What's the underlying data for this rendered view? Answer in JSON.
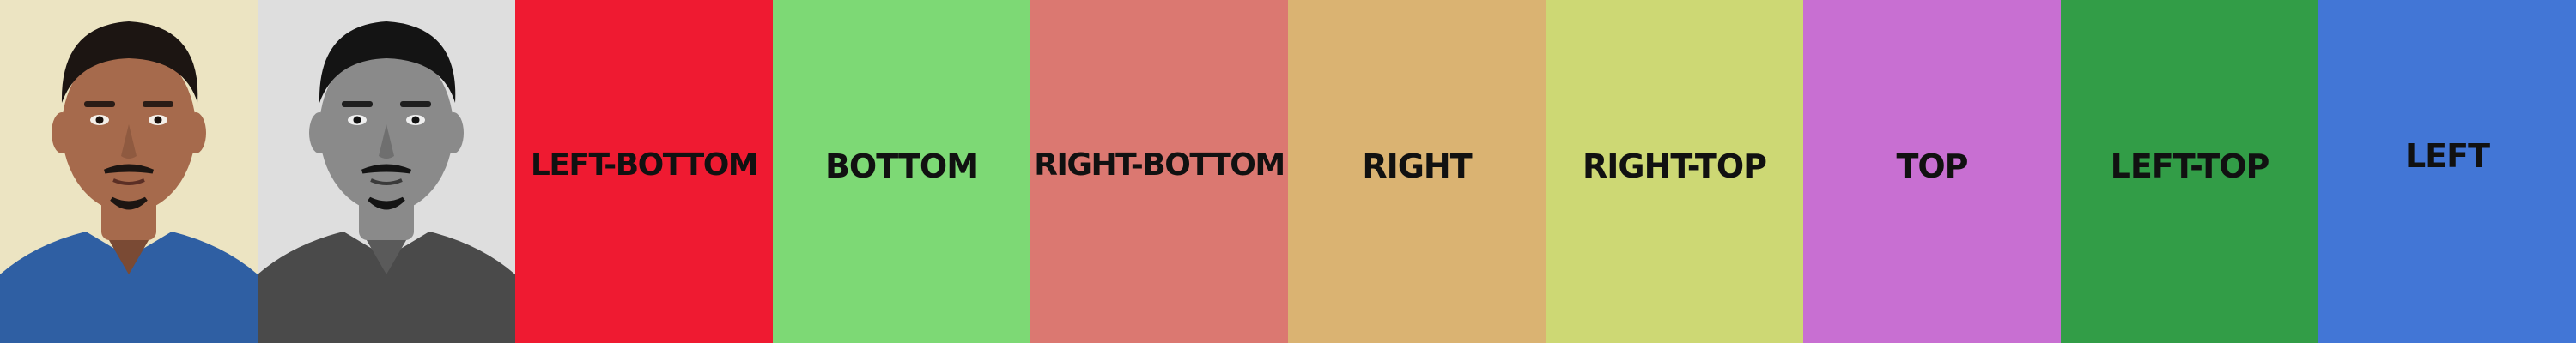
{
  "photos": [
    {
      "name": "color-portrait",
      "style": "color",
      "background": "#ece4c2",
      "shirt": "#2f5fa3",
      "skin": "#a66a4c"
    },
    {
      "name": "grayscale-portrait",
      "style": "grayscale",
      "background": "#dedede",
      "shirt": "#4a4a4a",
      "skin": "#8a8a8a"
    }
  ],
  "tiles": [
    {
      "label": "LEFT-BOTTOM",
      "color": "#ef1a31"
    },
    {
      "label": "BOTTOM",
      "color": "#7dd975"
    },
    {
      "label": "RIGHT-BOTTOM",
      "color": "#db7871"
    },
    {
      "label": "RIGHT",
      "color": "#dab372"
    },
    {
      "label": "RIGHT-TOP",
      "color": "#cdd874"
    },
    {
      "label": "TOP",
      "color": "#c86fd2"
    },
    {
      "label": "LEFT-TOP",
      "color": "#329d47"
    },
    {
      "label": "LEFT",
      "color": "#4276d6"
    }
  ]
}
